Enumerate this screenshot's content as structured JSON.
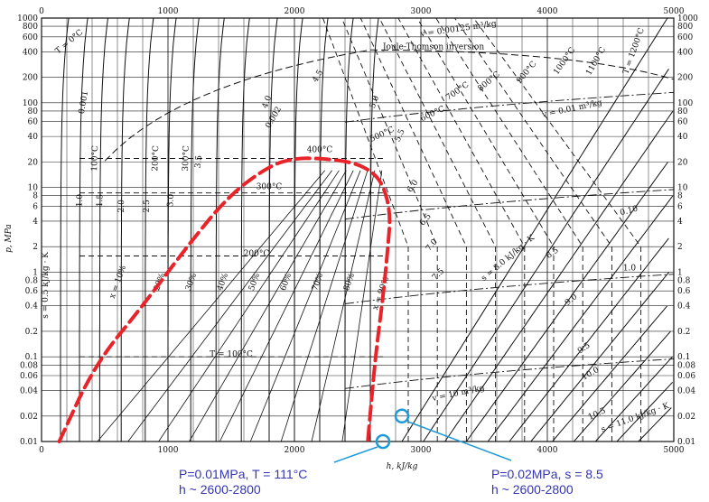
{
  "chart_data": {
    "type": "line",
    "title": "",
    "xlabel": "h, kJ/kg",
    "ylabel": "p, MPa",
    "xlim": [
      0,
      5000
    ],
    "ylim": [
      0.01,
      1000
    ],
    "y_scale": "log",
    "grid": true,
    "x_ticks": [
      0,
      1000,
      2000,
      3000,
      4000,
      5000
    ],
    "y_ticks": [
      0.01,
      0.02,
      0.04,
      0.06,
      0.08,
      0.1,
      0.2,
      0.4,
      0.6,
      0.8,
      1,
      2,
      4,
      6,
      8,
      10,
      20,
      40,
      60,
      80,
      100,
      200,
      400,
      600,
      800,
      1000
    ],
    "saturation_dome": {
      "color": "#e8232a",
      "x": [
        140,
        420,
        800,
        1150,
        1480,
        1800,
        2000,
        2200,
        2450,
        2600,
        2700,
        2760,
        2740,
        2700,
        2640,
        2580
      ],
      "y": [
        0.01,
        0.08,
        0.4,
        2.0,
        8.0,
        18,
        22.1,
        22.1,
        20,
        16,
        11,
        5,
        2,
        0.5,
        0.1,
        0.01
      ]
    },
    "quality_labels": [
      "x = 10%",
      "20%",
      "30%",
      "40%",
      "50%",
      "60%",
      "70%",
      "80%",
      "x = 90%"
    ],
    "temperature_labels": [
      "T = 0°C",
      "100°C",
      "200°C",
      "300°C",
      "400°C",
      "500°C",
      "600°C",
      "700°C",
      "800°C",
      "900°C",
      "1000°C",
      "1100°C",
      "T = 1200°C",
      "300°C",
      "200°C",
      "T = 100°C"
    ],
    "entropy_labels": [
      "s = 0.5 kJ/kg · K",
      "1.0",
      "1.5",
      "2.0",
      "2.5",
      "3.0",
      "3.5",
      "4.0",
      "4.5",
      "5.0",
      "5.5",
      "6.0",
      "6.5",
      "7.0",
      "7.5",
      "s = 8.0 kJ/kg · K",
      "8.5",
      "9.0",
      "9.5",
      "10.0",
      "10.5",
      "s = 11.0 kJ/kg · K"
    ],
    "volume_labels": [
      "v = 0.00125 m³/kg",
      "0.001",
      "0.002",
      "v = 0.01 m³/kg",
      "0.10",
      "1.0",
      "v = 10 m³/kg"
    ],
    "inversion_label": "Joule-Thomson inversion",
    "markers": [
      {
        "x": 2700,
        "y": 0.01,
        "color": "#1e9ad6",
        "label": "P=0.01MPa, T = 111°C",
        "sub": "h ~ 2600-2800"
      },
      {
        "x": 2850,
        "y": 0.02,
        "color": "#1e9ad6",
        "label": "P=0.02MPa, s = 8.5",
        "sub": "h ~ 2600-2800"
      }
    ]
  }
}
